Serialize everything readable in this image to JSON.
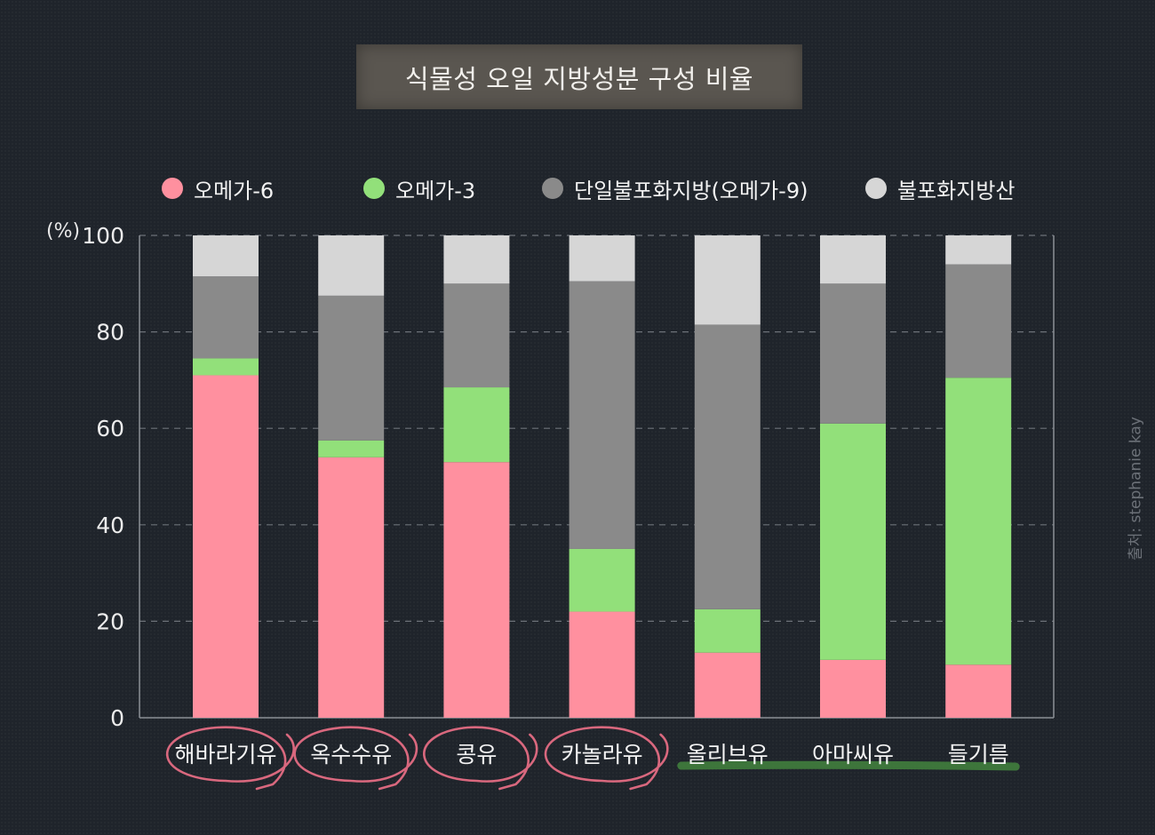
{
  "title": "식물성 오일 지방성분 구성 비율",
  "credit": "출처: stephanie kay",
  "colors": {
    "omega6": "#ff909f",
    "omega3": "#92e07a",
    "mono": "#8a8a8a",
    "sat": "#d6d6d6",
    "circle": "#d9687e",
    "underline": "#3f7a3c"
  },
  "chart_data": {
    "type": "bar",
    "stacked": true,
    "ylabel": "(%)",
    "ylim": [
      0,
      100
    ],
    "yticks": [
      "0",
      "20",
      "40",
      "60",
      "80",
      "100"
    ],
    "grid": true,
    "legend_position": "top",
    "categories": [
      "해바라기유",
      "옥수수유",
      "콩유",
      "카놀라유",
      "올리브유",
      "아마씨유",
      "들기름"
    ],
    "series": [
      {
        "name": "오메가-6",
        "color": "#ff909f",
        "values": [
          71,
          54,
          53,
          22,
          13.5,
          12,
          11
        ]
      },
      {
        "name": "오메가-3",
        "color": "#92e07a",
        "values": [
          3.5,
          3.5,
          15.5,
          13,
          9,
          49,
          59.5
        ]
      },
      {
        "name": "단일불포화지방(오메가-9)",
        "color": "#8a8a8a",
        "values": [
          17,
          30,
          21.5,
          55.5,
          59,
          29,
          23.5
        ]
      },
      {
        "name": "불포화지방산",
        "color": "#d6d6d6",
        "values": [
          8.5,
          12.5,
          10,
          9.5,
          18.5,
          10,
          6
        ]
      }
    ],
    "annotations": {
      "circled": [
        "해바라기유",
        "옥수수유",
        "콩유",
        "카놀라유"
      ],
      "underlined": [
        "올리브유",
        "아마씨유",
        "들기름"
      ]
    }
  }
}
